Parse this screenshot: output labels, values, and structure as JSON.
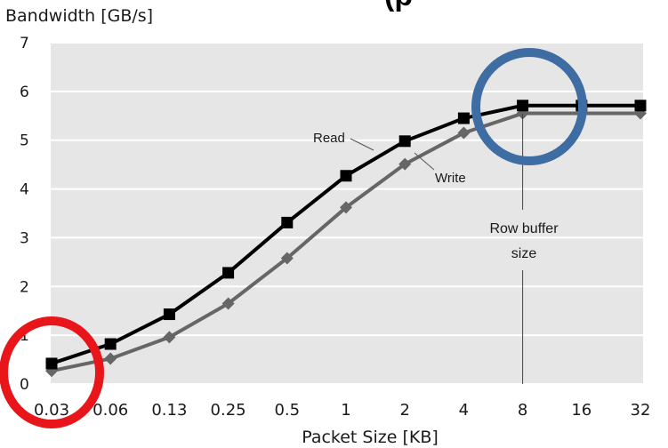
{
  "chart_data": {
    "type": "line",
    "title_fragment": "(p",
    "ylabel": "Bandwidth [GB/s]",
    "xlabel": "Packet Size [KB]",
    "categories": [
      "0.03",
      "0.06",
      "0.13",
      "0.25",
      "0.5",
      "1",
      "2",
      "4",
      "8",
      "16",
      "32"
    ],
    "yticks": [
      "0",
      "1",
      "2",
      "3",
      "4",
      "5",
      "6",
      "7"
    ],
    "ylim": [
      0,
      7
    ],
    "grid": "horizontal",
    "series": [
      {
        "name": "Read",
        "color": "#000000",
        "marker": "square",
        "values": [
          0.42,
          0.82,
          1.43,
          2.28,
          3.31,
          4.27,
          4.98,
          5.45,
          5.71,
          5.71,
          5.71
        ]
      },
      {
        "name": "Write",
        "color": "#666666",
        "marker": "diamond",
        "values": [
          0.27,
          0.52,
          0.96,
          1.65,
          2.58,
          3.62,
          4.51,
          5.15,
          5.55,
          5.55,
          5.55
        ]
      }
    ],
    "annotations": {
      "row_buffer_line1": "Row buffer",
      "row_buffer_line2": "size",
      "row_buffer_category": "8"
    },
    "highlight_circles": [
      {
        "color": "#e8161b",
        "category": "0.03",
        "value": 0.3
      },
      {
        "color": "#3e6da3",
        "category": "8",
        "value": 5.6
      }
    ],
    "plot_background": "#e6e6e6"
  }
}
